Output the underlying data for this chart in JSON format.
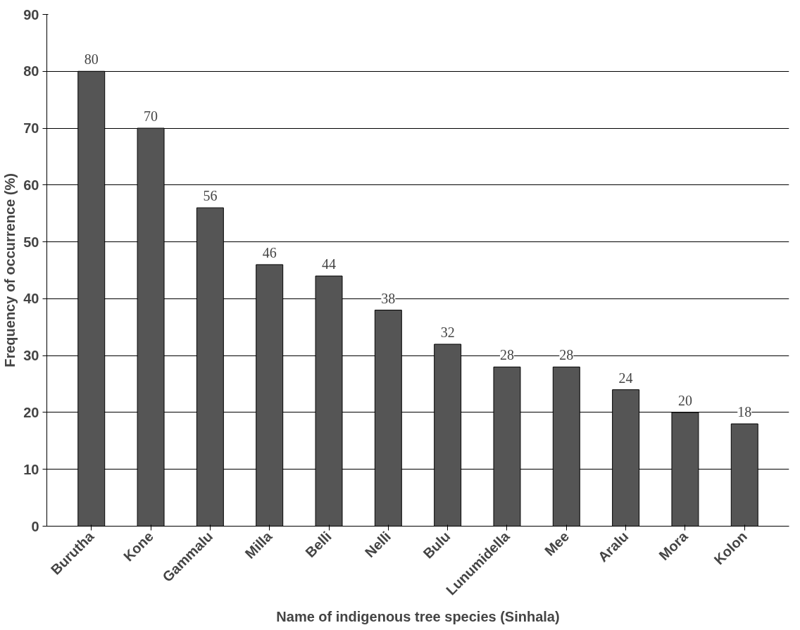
{
  "chart_data": {
    "type": "bar",
    "xlabel": "Name of indigenous tree species (Sinhala)",
    "ylabel": "Frequency of occurrence (%)",
    "categories": [
      "Burutha",
      "Kone",
      "Gammalu",
      "Milla",
      "Belli",
      "Nelli",
      "Bulu",
      "Lunumidella",
      "Mee",
      "Aralu",
      "Mora",
      "Kolon"
    ],
    "values": [
      80,
      70,
      56,
      46,
      44,
      38,
      32,
      28,
      28,
      24,
      20,
      18
    ],
    "color": "#555555",
    "ylim": [
      0,
      90
    ],
    "yticks": [
      0,
      10,
      20,
      30,
      40,
      50,
      60,
      70,
      80,
      90
    ],
    "grid": "y",
    "data_labels": true
  }
}
